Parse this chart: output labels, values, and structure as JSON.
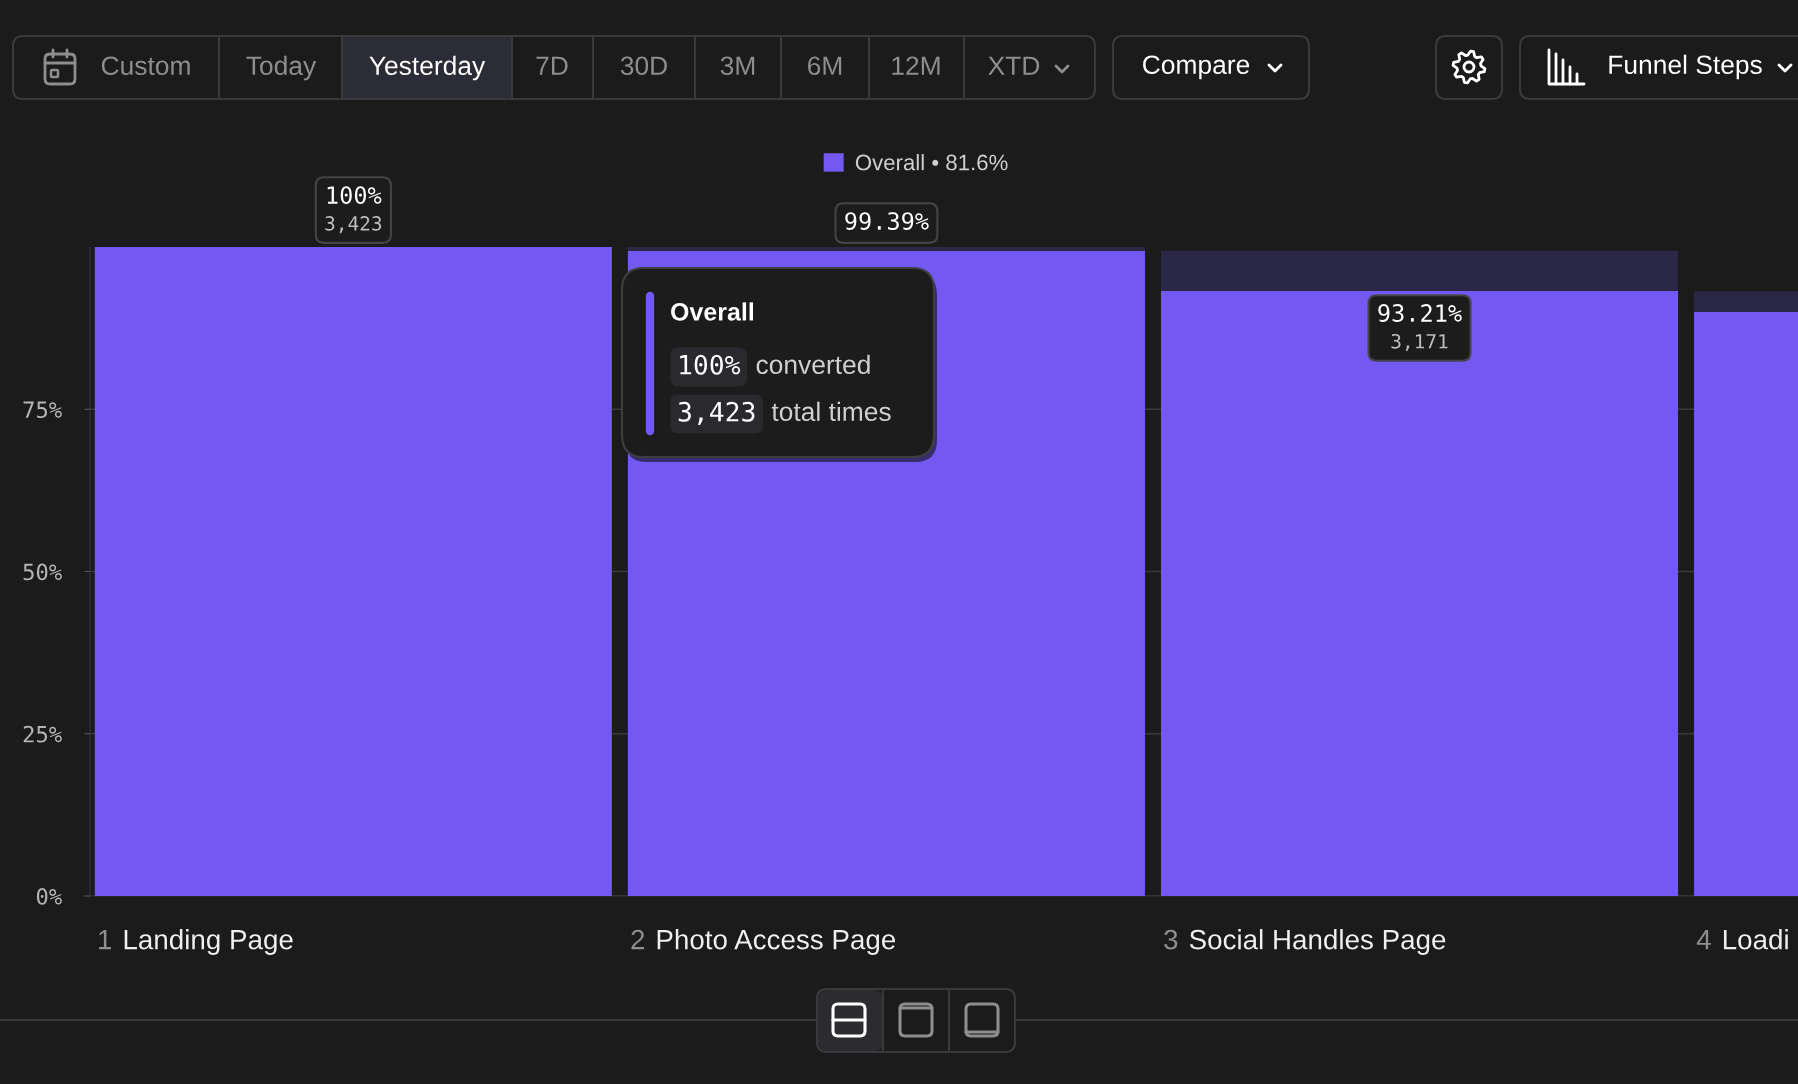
{
  "chart_data": {
    "type": "bar",
    "categories": [
      "1 Landing Page",
      "2 Photo Access Page",
      "3 Social Handles Page",
      "4 Loadi"
    ],
    "series": [
      {
        "name": "Overall • 81.6%",
        "color": "#7458f2",
        "values": [
          100,
          99.39,
          93.21,
          90
        ],
        "value_labels": [
          "100%\n3,423",
          "99.39%",
          "93.21%\n3,171",
          null
        ]
      },
      {
        "color": "#2b2746",
        "values": [
          null,
          0.6,
          6.2,
          3.2
        ]
      }
    ],
    "stacked": true,
    "ylim": [
      0,
      100
    ],
    "yticks": [
      {
        "value": 0,
        "label": "0%"
      },
      {
        "value": 25,
        "label": "25%"
      },
      {
        "value": 50,
        "label": "50%"
      },
      {
        "value": 75,
        "label": "75%"
      }
    ],
    "grid": "y",
    "legend": "top",
    "annotations": [
      "Custom",
      "Today",
      "Yesterday",
      "7D",
      "30D",
      "3M",
      "6M",
      "12M",
      "XTD",
      "Compare",
      "Funnel Steps",
      "Overall",
      "100% converted",
      "3,423 total times"
    ]
  }
}
